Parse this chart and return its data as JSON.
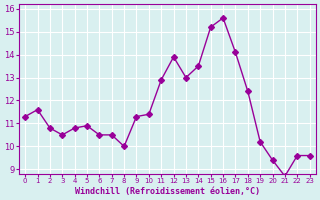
{
  "x": [
    0,
    1,
    2,
    3,
    4,
    5,
    6,
    7,
    8,
    9,
    10,
    11,
    12,
    13,
    14,
    15,
    16,
    17,
    18,
    19,
    20,
    21,
    22,
    23
  ],
  "y": [
    11.3,
    11.6,
    10.8,
    10.5,
    10.8,
    10.9,
    10.5,
    10.5,
    10.0,
    11.3,
    11.4,
    12.9,
    13.9,
    13.0,
    13.5,
    15.2,
    15.6,
    14.1,
    12.4,
    10.2,
    9.4,
    8.7,
    9.6,
    9.6
  ],
  "line_color": "#990099",
  "marker": "D",
  "marker_size": 3,
  "bg_color": "#d9f0f0",
  "grid_color": "#ffffff",
  "xlabel": "Windchill (Refroidissement éolien,°C)",
  "xlabel_color": "#990099",
  "tick_color": "#990099",
  "ylim": [
    9,
    16
  ],
  "yticks": [
    9,
    10,
    11,
    12,
    13,
    14,
    15,
    16
  ],
  "xticks": [
    0,
    1,
    2,
    3,
    4,
    5,
    6,
    7,
    8,
    9,
    10,
    11,
    12,
    13,
    14,
    15,
    16,
    17,
    18,
    19,
    20,
    21,
    22,
    23
  ],
  "title_color": "#990099",
  "spine_color": "#990099"
}
